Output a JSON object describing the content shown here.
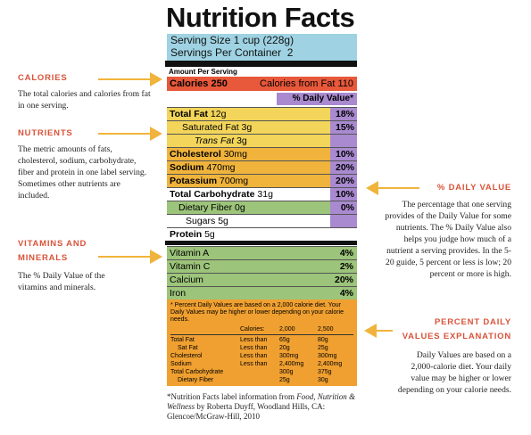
{
  "label": {
    "title": "Nutrition Facts",
    "serving_size": "Serving Size 1 cup (228g)",
    "servings_per_container": "Servings Per Container  2",
    "amount_per_serving": "Amount Per Serving",
    "calories": "Calories 250",
    "calories_from_fat": "Calories from Fat 110",
    "daily_value_header": "% Daily Value*",
    "nutrients": [
      {
        "name": "Total Fat",
        "amount": "12g",
        "dv": "18%"
      },
      {
        "name": "Saturated Fat",
        "amount": "3g",
        "dv": "15%"
      },
      {
        "name": "Trans Fat",
        "amount": "3g"
      },
      {
        "name": "Cholesterol",
        "amount": "30mg",
        "dv": "10%"
      },
      {
        "name": "Sodium",
        "amount": "470mg",
        "dv": "20%"
      },
      {
        "name": "Potassium",
        "amount": "700mg",
        "dv": "20%"
      },
      {
        "name": "Total Carbohydrate",
        "amount": "31g",
        "dv": "10%"
      },
      {
        "name": "Dietary Fiber",
        "amount": "0g",
        "dv": "0%"
      },
      {
        "name": "Sugars",
        "amount": "5g"
      },
      {
        "name": "Protein",
        "amount": "5g"
      }
    ],
    "vitamins": [
      {
        "name": "Vitamin A",
        "dv": "4%"
      },
      {
        "name": "Vitamin C",
        "dv": "2%"
      },
      {
        "name": "Calcium",
        "dv": "20%"
      },
      {
        "name": "Iron",
        "dv": "4%"
      }
    ],
    "footnote": "* Percent Daily Values are based on a 2,000 calorie diet. Your Daily Values may be higher or lower depending on your calorie needs.",
    "footnote_table": {
      "header": {
        "label": "Calories:",
        "col1": "2,000",
        "col2": "2,500"
      },
      "rows": [
        {
          "name": "Total Fat",
          "limit": "Less than",
          "col1": "65g",
          "col2": "80g"
        },
        {
          "name": "Sat Fat",
          "limit": "Less than",
          "col1": "20g",
          "col2": "25g"
        },
        {
          "name": "Cholesterol",
          "limit": "Less than",
          "col1": "300mg",
          "col2": "300mg"
        },
        {
          "name": "Sodium",
          "limit": "Less than",
          "col1": "2,400mg",
          "col2": "2,400mg"
        },
        {
          "name": "Total Carbohydrate",
          "col1": "300g",
          "col2": "375g"
        },
        {
          "name": "Dietary Fiber",
          "col1": "25g",
          "col2": "30g"
        }
      ]
    }
  },
  "source": {
    "prefix": "*Nutrition Facts label information from",
    "italic": "Food, Nutrition & Wellness",
    "suffix": "by Roberta Duyff, Woodland Hills, CA: Glencoe/McGraw-Hill, 2010"
  },
  "annotations": {
    "calories": {
      "heading": "CALORIES",
      "text": "The total calories and calories from fat in one serving."
    },
    "nutrients": {
      "heading": "NUTRIENTS",
      "text": "The metric amounts of fats, cholesterol, sodium, carbohydrate, fiber and protein in one label serving. Sometimes other nutrients are included."
    },
    "vitamins": {
      "heading": "VITAMINS AND MINERALS",
      "text": "The % Daily Value of the vitamins and minerals."
    },
    "daily_value": {
      "heading": "% DAILY VALUE",
      "text": "The percentage that one serving provides of the Daily Value for some nutrients. The % Daily Value also helps you judge how much of a nutrient a serving provides. In the 5-20 guide, 5 percent or less is low; 20 percent or more is high."
    },
    "explanation": {
      "heading": "PERCENT DAILY VALUES EXPLANATION",
      "text": "Daily Values are based on a 2,000-calorie diet. Your daily value may be higher or lower depending on your calorie needs."
    }
  }
}
